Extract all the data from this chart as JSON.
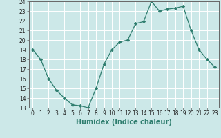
{
  "x": [
    0,
    1,
    2,
    3,
    4,
    5,
    6,
    7,
    8,
    9,
    10,
    11,
    12,
    13,
    14,
    15,
    16,
    17,
    18,
    19,
    20,
    21,
    22,
    23
  ],
  "y": [
    19,
    18,
    16,
    14.8,
    14,
    13.3,
    13.2,
    13,
    15,
    17.5,
    19,
    19.8,
    20,
    21.7,
    21.9,
    24,
    23,
    23.2,
    23.3,
    23.5,
    21,
    19,
    18,
    17.2
  ],
  "line_color": "#2e7d6e",
  "marker_color": "#2e7d6e",
  "bg_color": "#cce8e8",
  "grid_color": "#ffffff",
  "xlabel": "Humidex (Indice chaleur)",
  "xlim": [
    -0.5,
    23.5
  ],
  "ylim": [
    13,
    24
  ],
  "yticks": [
    13,
    14,
    15,
    16,
    17,
    18,
    19,
    20,
    21,
    22,
    23,
    24
  ],
  "xticks": [
    0,
    1,
    2,
    3,
    4,
    5,
    6,
    7,
    8,
    9,
    10,
    11,
    12,
    13,
    14,
    15,
    16,
    17,
    18,
    19,
    20,
    21,
    22,
    23
  ],
  "tick_fontsize": 5.5,
  "label_fontsize": 7,
  "spine_color": "#666666"
}
